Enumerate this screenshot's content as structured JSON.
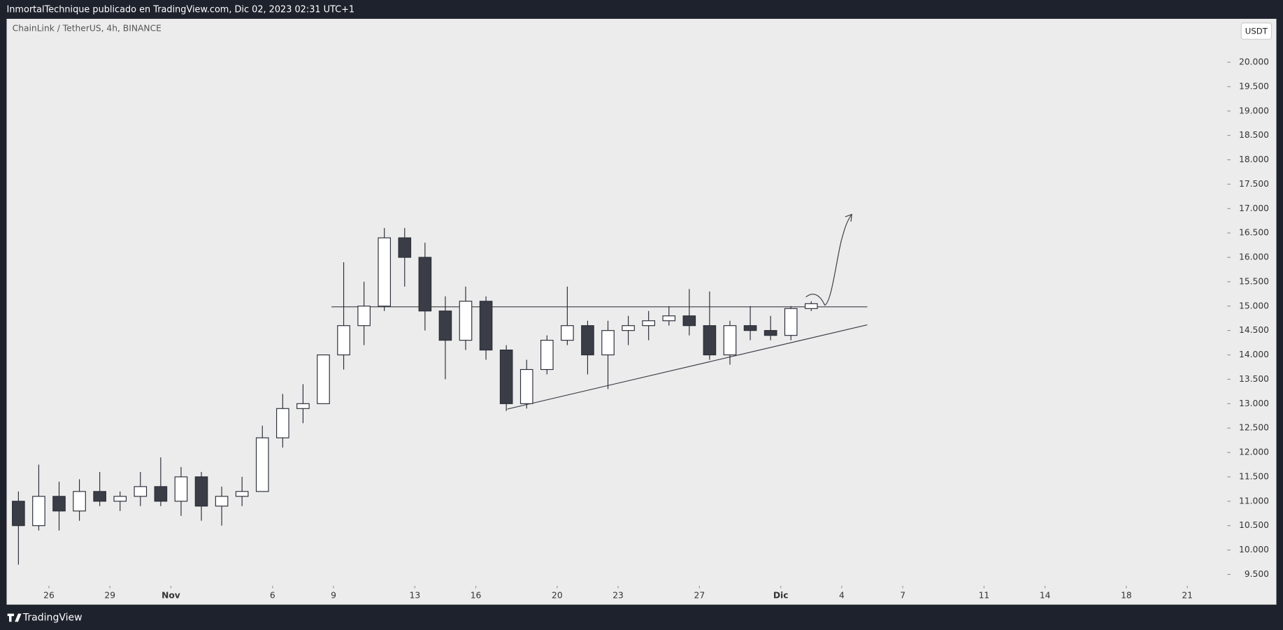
{
  "header": {
    "publisher": "InmortalTechnique publicado en TradingView.com, Dic 02, 2023 02:31 UTC+1",
    "brand": "TradingView"
  },
  "chart_data": {
    "type": "candlestick",
    "title": "ChainLink / TetherUS, 4h, BINANCE",
    "currency": "USDT",
    "up_color": "#ffffff",
    "down_color": "#3a3d46",
    "line_color": "#2a2e39",
    "x": [
      "2023-10-24T12:00",
      "2023-10-25T12:00",
      "2023-10-26T12:00",
      "2023-10-27T12:00",
      "2023-10-28T12:00",
      "2023-10-29T12:00",
      "2023-10-30T12:00",
      "2023-10-31T12:00",
      "2023-11-01T12:00",
      "2023-11-02T12:00",
      "2023-11-03T12:00",
      "2023-11-04T12:00",
      "2023-11-05T12:00",
      "2023-11-06T12:00",
      "2023-11-07T12:00",
      "2023-11-08T12:00",
      "2023-11-09T12:00",
      "2023-11-10T12:00",
      "2023-11-11T12:00",
      "2023-11-12T12:00",
      "2023-11-13T12:00",
      "2023-11-14T12:00",
      "2023-11-15T12:00",
      "2023-11-16T12:00",
      "2023-11-17T12:00",
      "2023-11-18T12:00",
      "2023-11-19T12:00",
      "2023-11-20T12:00",
      "2023-11-21T12:00",
      "2023-11-22T12:00",
      "2023-11-23T12:00",
      "2023-11-24T12:00",
      "2023-11-25T12:00",
      "2023-11-26T12:00",
      "2023-11-27T12:00",
      "2023-11-28T12:00",
      "2023-11-29T12:00",
      "2023-11-30T12:00",
      "2023-12-01T12:00",
      "2023-12-02T12:00"
    ],
    "open": [
      11.0,
      10.5,
      11.1,
      10.8,
      11.2,
      11.0,
      11.1,
      11.3,
      11.0,
      11.5,
      10.9,
      11.1,
      11.2,
      12.3,
      12.9,
      13.0,
      14.0,
      14.6,
      15.0,
      16.4,
      16.0,
      14.9,
      14.3,
      15.1,
      14.1,
      13.0,
      13.7,
      14.3,
      14.6,
      14.0,
      14.5,
      14.6,
      14.7,
      14.8,
      14.6,
      14.0,
      14.6,
      14.5,
      14.4,
      14.95
    ],
    "high": [
      11.2,
      11.75,
      11.4,
      11.45,
      11.6,
      11.2,
      11.6,
      11.9,
      11.7,
      11.6,
      11.3,
      11.5,
      12.55,
      13.2,
      13.4,
      14.0,
      15.9,
      15.5,
      16.6,
      16.6,
      16.3,
      15.2,
      15.4,
      15.2,
      14.2,
      13.9,
      14.4,
      15.4,
      14.7,
      14.7,
      14.8,
      14.9,
      15.0,
      15.35,
      15.3,
      14.7,
      15.0,
      14.8,
      15.0,
      15.1
    ],
    "low": [
      9.7,
      10.4,
      10.4,
      10.6,
      10.9,
      10.8,
      10.9,
      10.9,
      10.7,
      10.6,
      10.5,
      10.9,
      11.2,
      12.1,
      12.6,
      13.0,
      13.7,
      14.2,
      14.9,
      15.4,
      14.5,
      13.5,
      14.1,
      13.9,
      12.85,
      12.9,
      13.6,
      14.2,
      13.6,
      13.3,
      14.2,
      14.3,
      14.6,
      14.4,
      13.9,
      13.8,
      14.3,
      14.3,
      14.3,
      14.9
    ],
    "close": [
      10.5,
      11.1,
      10.8,
      11.2,
      11.0,
      11.1,
      11.3,
      11.0,
      11.5,
      10.9,
      11.1,
      11.2,
      12.3,
      12.9,
      13.0,
      14.0,
      14.6,
      15.0,
      16.4,
      16.0,
      14.9,
      14.3,
      15.1,
      14.1,
      13.0,
      13.7,
      14.3,
      14.6,
      14.0,
      14.5,
      14.6,
      14.7,
      14.8,
      14.6,
      14.0,
      14.6,
      14.5,
      14.4,
      14.95,
      15.05
    ],
    "xlim": [
      "2023-10-24T00:00",
      "2023-12-22T00:00"
    ],
    "xticks": [
      {
        "value": "2023-10-26T00:00",
        "label": "26"
      },
      {
        "value": "2023-10-29T00:00",
        "label": "29"
      },
      {
        "value": "2023-11-01T00:00",
        "label": "Nov"
      },
      {
        "value": "2023-11-06T00:00",
        "label": "6"
      },
      {
        "value": "2023-11-09T00:00",
        "label": "9"
      },
      {
        "value": "2023-11-13T00:00",
        "label": "13"
      },
      {
        "value": "2023-11-16T00:00",
        "label": "16"
      },
      {
        "value": "2023-11-20T00:00",
        "label": "20"
      },
      {
        "value": "2023-11-23T00:00",
        "label": "23"
      },
      {
        "value": "2023-11-27T00:00",
        "label": "27"
      },
      {
        "value": "2023-12-01T00:00",
        "label": "Dic"
      },
      {
        "value": "2023-12-04T00:00",
        "label": "4"
      },
      {
        "value": "2023-12-07T00:00",
        "label": "7"
      },
      {
        "value": "2023-12-11T00:00",
        "label": "11"
      },
      {
        "value": "2023-12-14T00:00",
        "label": "14"
      },
      {
        "value": "2023-12-18T00:00",
        "label": "18"
      },
      {
        "value": "2023-12-21T00:00",
        "label": "21"
      }
    ],
    "ylim": [
      8.88,
      20.89
    ],
    "yticks": [
      {
        "value": 9.5,
        "label": "9.500"
      },
      {
        "value": 10,
        "label": "10.000"
      },
      {
        "value": 10.5,
        "label": "10.500"
      },
      {
        "value": 11,
        "label": "11.000"
      },
      {
        "value": 11.5,
        "label": "11.500"
      },
      {
        "value": 12,
        "label": "12.000"
      },
      {
        "value": 12.5,
        "label": "12.500"
      },
      {
        "value": 13,
        "label": "13.000"
      },
      {
        "value": 13.5,
        "label": "13.500"
      },
      {
        "value": 14,
        "label": "14.000"
      },
      {
        "value": 14.5,
        "label": "14.500"
      },
      {
        "value": 15,
        "label": "15.000"
      },
      {
        "value": 15.5,
        "label": "15.500"
      },
      {
        "value": 16,
        "label": "16.000"
      },
      {
        "value": 16.5,
        "label": "16.500"
      },
      {
        "value": 17,
        "label": "17.000"
      },
      {
        "value": 17.5,
        "label": "17.500"
      },
      {
        "value": 18,
        "label": "18.000"
      },
      {
        "value": 18.5,
        "label": "18.500"
      },
      {
        "value": 19,
        "label": "19.000"
      },
      {
        "value": 19.5,
        "label": "19.500"
      },
      {
        "value": 20,
        "label": "20.000"
      }
    ],
    "grid": false
  }
}
